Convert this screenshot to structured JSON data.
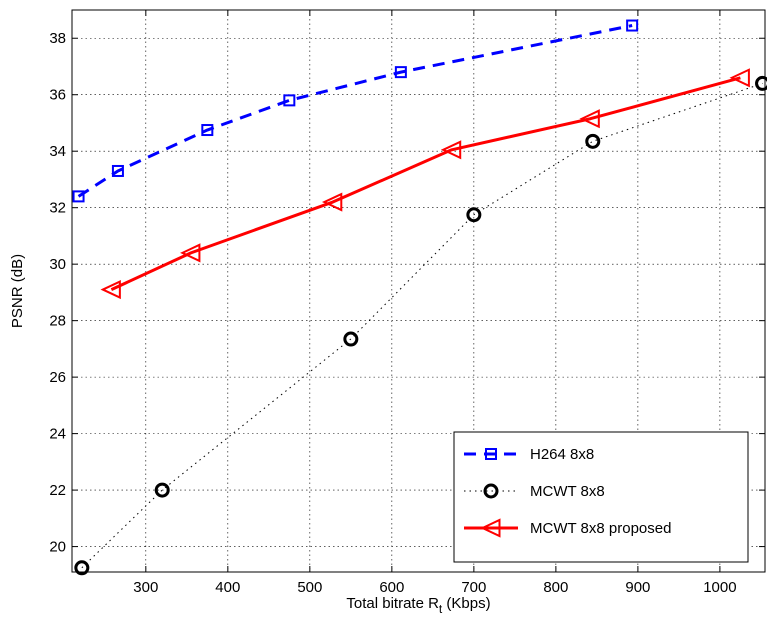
{
  "chart_data": {
    "type": "line",
    "xlabel_main": "Total bitrate R",
    "xlabel_sub": "t",
    "xlabel_suffix": " (Kbps)",
    "ylabel": "PSNR (dB)",
    "xlim": [
      210,
      1055
    ],
    "ylim": [
      19.1,
      39.0
    ],
    "xticks": [
      300,
      400,
      500,
      600,
      700,
      800,
      900,
      1000
    ],
    "yticks": [
      20,
      22,
      24,
      26,
      28,
      30,
      32,
      34,
      36,
      38
    ],
    "grid": true,
    "legend_position": "bottom-right",
    "series": [
      {
        "name": "H264 8x8",
        "color": "#0000ff",
        "line_style": "dashed",
        "marker": "square",
        "x": [
          218,
          266,
          375,
          475,
          611,
          893
        ],
        "y": [
          32.4,
          33.3,
          34.75,
          35.8,
          36.8,
          38.45
        ]
      },
      {
        "name": "MCWT 8x8",
        "color": "#000000",
        "line_style": "dotted",
        "marker": "circle",
        "x": [
          222,
          320,
          550,
          700,
          845,
          1052
        ],
        "y": [
          19.25,
          22.0,
          27.35,
          31.75,
          34.35,
          36.4
        ]
      },
      {
        "name": "MCWT 8x8 proposed",
        "color": "#ff0000",
        "line_style": "solid",
        "marker": "triangle-left",
        "x": [
          258,
          355,
          528,
          673,
          842,
          1025
        ],
        "y": [
          29.1,
          30.4,
          32.2,
          34.05,
          35.15,
          36.6
        ]
      }
    ]
  }
}
